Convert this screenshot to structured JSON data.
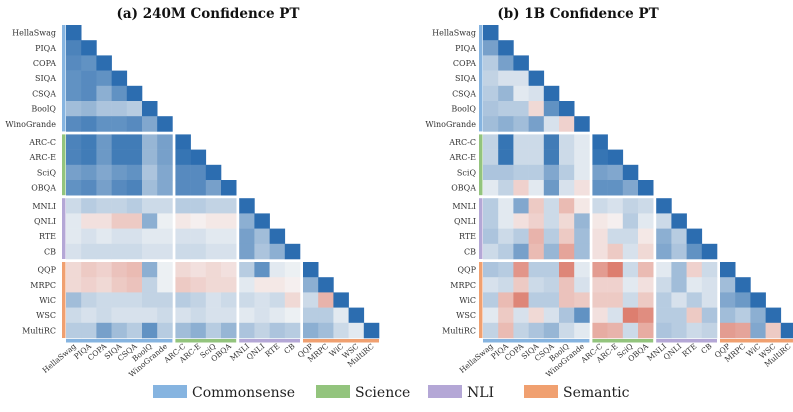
{
  "legend": [
    {
      "label": "Commonsense",
      "color": "#86b4e0"
    },
    {
      "label": "Science",
      "color": "#93c47d"
    },
    {
      "label": "NLI",
      "color": "#b4a7d6"
    },
    {
      "label": "Semantic",
      "color": "#f0a070"
    }
  ],
  "chart_data": [
    {
      "type": "heatmap",
      "title": "(a) 240M Confidence PT",
      "tasks": [
        "HellaSwag",
        "PIQA",
        "COPA",
        "SIQA",
        "CSQA",
        "BoolQ",
        "WinoGrande",
        "ARC-C",
        "ARC-E",
        "SciQ",
        "OBQA",
        "MNLI",
        "QNLI",
        "RTE",
        "CB",
        "QQP",
        "MRPC",
        "WiC",
        "WSC",
        "MultiRC"
      ],
      "task_groups": [
        "Commonsense",
        "Commonsense",
        "Commonsense",
        "Commonsense",
        "Commonsense",
        "Commonsense",
        "Commonsense",
        "Science",
        "Science",
        "Science",
        "Science",
        "NLI",
        "NLI",
        "NLI",
        "NLI",
        "Semantic",
        "Semantic",
        "Semantic",
        "Semantic",
        "Semantic"
      ],
      "value_range": [
        -1,
        1
      ],
      "colormap": "red (negative) - white (0) - blue (positive)",
      "lower_triangle": [
        [
          0.95
        ],
        [
          0.8,
          0.95
        ],
        [
          0.75,
          0.7,
          0.95
        ],
        [
          0.7,
          0.75,
          0.7,
          0.95
        ],
        [
          0.7,
          0.75,
          0.5,
          0.7,
          0.95
        ],
        [
          0.4,
          0.45,
          0.35,
          0.35,
          0.3,
          0.95
        ],
        [
          0.75,
          0.8,
          0.7,
          0.7,
          0.75,
          0.55,
          0.95
        ],
        [
          0.8,
          0.85,
          0.65,
          0.85,
          0.85,
          0.45,
          0.6,
          0.95
        ],
        [
          0.8,
          0.85,
          0.65,
          0.85,
          0.85,
          0.45,
          0.6,
          0.9,
          0.95
        ],
        [
          0.6,
          0.65,
          0.55,
          0.65,
          0.7,
          0.35,
          0.55,
          0.75,
          0.75,
          0.95
        ],
        [
          0.7,
          0.75,
          0.6,
          0.75,
          0.8,
          0.4,
          0.55,
          0.75,
          0.75,
          0.6,
          0.95
        ],
        [
          0.2,
          0.3,
          0.25,
          0.25,
          0.3,
          0.2,
          0.2,
          0.3,
          0.3,
          0.25,
          0.25,
          0.95
        ],
        [
          0.1,
          -0.15,
          -0.15,
          -0.3,
          -0.3,
          0.5,
          0.05,
          -0.1,
          -0.05,
          -0.1,
          -0.1,
          0.5,
          0.95
        ],
        [
          0.1,
          0.15,
          0.1,
          0.15,
          0.15,
          0.1,
          0.1,
          0.15,
          0.15,
          0.1,
          0.1,
          0.6,
          0.4,
          0.95
        ],
        [
          0.15,
          0.2,
          0.2,
          0.2,
          0.2,
          0.15,
          0.15,
          0.2,
          0.2,
          0.15,
          0.15,
          0.6,
          0.35,
          0.5,
          0.95
        ],
        [
          -0.2,
          -0.3,
          -0.25,
          -0.35,
          -0.4,
          0.5,
          0.05,
          -0.2,
          -0.15,
          -0.2,
          -0.15,
          0.3,
          0.7,
          0.1,
          0.05,
          0.95
        ],
        [
          -0.2,
          -0.25,
          -0.2,
          -0.3,
          -0.35,
          0.25,
          0.05,
          -0.3,
          -0.25,
          -0.2,
          -0.2,
          0.1,
          -0.1,
          -0.1,
          -0.05,
          0.5,
          0.95
        ],
        [
          0.4,
          0.25,
          0.2,
          0.2,
          0.2,
          0.25,
          0.25,
          0.3,
          0.25,
          0.15,
          0.2,
          0.2,
          0.15,
          0.2,
          -0.2,
          0.2,
          -0.45,
          0.95
        ],
        [
          0.2,
          0.15,
          0.2,
          0.15,
          0.15,
          0.15,
          0.2,
          0.15,
          0.2,
          0.15,
          0.15,
          0.1,
          0.15,
          0.1,
          0.05,
          0.3,
          0.3,
          0.1,
          0.95
        ],
        [
          0.3,
          0.3,
          0.6,
          0.4,
          0.3,
          0.7,
          0.3,
          0.4,
          0.5,
          0.3,
          0.45,
          0.35,
          0.25,
          0.35,
          0.3,
          0.5,
          0.4,
          0.2,
          0.1,
          0.95
        ]
      ]
    },
    {
      "type": "heatmap",
      "title": "(b) 1B Confidence PT",
      "tasks": [
        "HellaSwag",
        "PIQA",
        "COPA",
        "SIQA",
        "CSQA",
        "BoolQ",
        "WinoGrande",
        "ARC-C",
        "ARC-E",
        "SciQ",
        "OBQA",
        "MNLI",
        "QNLI",
        "RTE",
        "CB",
        "QQP",
        "MRPC",
        "WiC",
        "WSC",
        "MultiRC"
      ],
      "task_groups": [
        "Commonsense",
        "Commonsense",
        "Commonsense",
        "Commonsense",
        "Commonsense",
        "Commonsense",
        "Commonsense",
        "Science",
        "Science",
        "Science",
        "Science",
        "NLI",
        "NLI",
        "NLI",
        "NLI",
        "Semantic",
        "Semantic",
        "Semantic",
        "Semantic",
        "Semantic"
      ],
      "value_range": [
        -1,
        1
      ],
      "colormap": "red (negative) - white (0) - blue (positive)",
      "lower_triangle": [
        [
          0.95
        ],
        [
          0.6,
          0.95
        ],
        [
          0.3,
          0.6,
          0.95
        ],
        [
          0.25,
          0.15,
          0.15,
          0.95
        ],
        [
          0.3,
          0.45,
          0.1,
          0.15,
          0.95
        ],
        [
          0.35,
          0.3,
          0.3,
          -0.2,
          0.7,
          0.95
        ],
        [
          0.4,
          0.5,
          0.4,
          0.6,
          0.15,
          -0.25,
          0.95
        ],
        [
          0.25,
          0.9,
          0.2,
          0.2,
          0.85,
          0.2,
          0.1,
          0.95
        ],
        [
          0.25,
          0.9,
          0.2,
          0.2,
          0.85,
          0.2,
          0.1,
          0.9,
          0.95
        ],
        [
          0.35,
          0.35,
          0.3,
          0.3,
          0.55,
          0.3,
          0.1,
          0.6,
          0.55,
          0.95
        ],
        [
          0.1,
          0.25,
          -0.25,
          0.1,
          0.65,
          0.15,
          -0.15,
          0.7,
          0.7,
          0.55,
          0.95
        ],
        [
          0.3,
          0.1,
          0.55,
          -0.3,
          0.2,
          -0.4,
          -0.1,
          0.2,
          0.15,
          0.25,
          0.2,
          0.95
        ],
        [
          0.3,
          0.1,
          -0.15,
          -0.25,
          0.2,
          -0.2,
          0.45,
          -0.1,
          -0.05,
          0.3,
          0.1,
          0.2,
          0.95
        ],
        [
          0.35,
          0.2,
          0.3,
          -0.45,
          0.3,
          -0.3,
          0.4,
          -0.15,
          0.2,
          0.2,
          -0.1,
          0.5,
          0.3,
          0.95
        ],
        [
          0.2,
          0.3,
          0.6,
          -0.4,
          0.45,
          -0.55,
          0.4,
          -0.15,
          -0.3,
          0.15,
          -0.2,
          0.55,
          0.35,
          0.7,
          0.95
        ],
        [
          0.35,
          0.3,
          -0.65,
          0.3,
          0.3,
          -0.75,
          0.1,
          -0.6,
          -0.8,
          0.2,
          -0.4,
          0.1,
          0.4,
          -0.25,
          0.2,
          0.95
        ],
        [
          0.15,
          0.2,
          -0.3,
          0.2,
          0.25,
          -0.35,
          0.15,
          -0.25,
          -0.25,
          0.1,
          -0.15,
          0.2,
          0.4,
          0.1,
          0.15,
          0.4,
          0.95
        ],
        [
          0.3,
          -0.4,
          -0.75,
          0.3,
          0.3,
          -0.35,
          -0.3,
          -0.3,
          -0.3,
          0.2,
          -0.3,
          0.3,
          0.15,
          0.3,
          0.15,
          0.55,
          0.65,
          0.95
        ],
        [
          0.1,
          -0.3,
          0.15,
          -0.2,
          0.15,
          0.35,
          0.7,
          -0.15,
          0.15,
          -0.8,
          -0.7,
          0.3,
          0.3,
          -0.3,
          0.35,
          0.4,
          0.3,
          0.5,
          0.95
        ],
        [
          0.25,
          -0.4,
          0.25,
          0.35,
          0.45,
          0.2,
          0.1,
          -0.5,
          -0.45,
          0.2,
          -0.5,
          0.35,
          0.3,
          0.2,
          0.25,
          -0.6,
          -0.55,
          0.55,
          -0.3,
          0.95
        ]
      ]
    }
  ]
}
